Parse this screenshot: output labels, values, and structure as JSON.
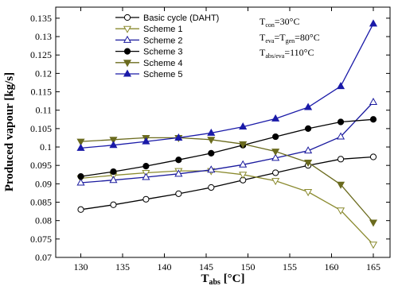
{
  "chart_data": {
    "type": "line",
    "xlabel": "T",
    "xlabel_sub": "abs",
    "xlabel_unit": " [°C]",
    "ylabel": "Produced vapour [kg/s]",
    "xlim": [
      127,
      167
    ],
    "ylim": [
      0.07,
      0.138
    ],
    "xticks": [
      130,
      135,
      140,
      145,
      150,
      155,
      160,
      165
    ],
    "yticks": [
      0.07,
      0.075,
      0.08,
      0.085,
      0.09,
      0.095,
      0.1,
      0.105,
      0.11,
      0.115,
      0.12,
      0.125,
      0.13,
      0.135
    ],
    "ytick_labels": [
      "0.07",
      "0.075",
      "0.08",
      "0.085",
      "0.09",
      "0.095",
      "0.1",
      "0.105",
      "0.11",
      "0.115",
      "0.12",
      "0.125",
      "0.13",
      "0.135"
    ],
    "x": [
      130,
      133.9,
      137.8,
      141.7,
      145.6,
      149.4,
      153.3,
      157.2,
      161.1,
      165
    ],
    "grid": false,
    "legend_position": "top-left",
    "annotations": [
      {
        "main": "T",
        "sub": "con",
        "rest": "=30°C"
      },
      {
        "main": "T",
        "sub": "eva",
        "mid": "=T",
        "sub2": "gen",
        "rest": "=80°C"
      },
      {
        "main": "T",
        "sub": "abs/eva",
        "rest": "=110°C"
      }
    ],
    "series": [
      {
        "name": "Basic cycle (DAHT)",
        "color": "#000000",
        "marker": "circle-open",
        "values": [
          0.083,
          0.0843,
          0.0858,
          0.0873,
          0.089,
          0.091,
          0.093,
          0.095,
          0.0967,
          0.0973
        ]
      },
      {
        "name": "Scheme 1",
        "color": "#8a8a2e",
        "marker": "triangle-down-open",
        "values": [
          0.0915,
          0.0923,
          0.093,
          0.0935,
          0.0935,
          0.0925,
          0.0908,
          0.0878,
          0.0828,
          0.0735
        ]
      },
      {
        "name": "Scheme 2",
        "color": "#1a1a9e",
        "marker": "triangle-up-open",
        "values": [
          0.0903,
          0.091,
          0.0918,
          0.0927,
          0.0938,
          0.0952,
          0.097,
          0.099,
          0.1028,
          0.1122
        ]
      },
      {
        "name": "Scheme 3",
        "color": "#000000",
        "marker": "circle-filled",
        "values": [
          0.092,
          0.0933,
          0.0948,
          0.0965,
          0.0983,
          0.1005,
          0.1028,
          0.105,
          0.1068,
          0.1075
        ]
      },
      {
        "name": "Scheme 4",
        "color": "#6b6b1e",
        "marker": "triangle-down-filled",
        "values": [
          0.1015,
          0.102,
          0.1025,
          0.1025,
          0.102,
          0.1008,
          0.0988,
          0.0958,
          0.0898,
          0.0795
        ]
      },
      {
        "name": "Scheme 5",
        "color": "#1a1aa8",
        "marker": "triangle-up-filled",
        "values": [
          0.0997,
          0.1005,
          0.1015,
          0.1025,
          0.1038,
          0.1055,
          0.1077,
          0.1108,
          0.1165,
          0.1335
        ]
      }
    ]
  }
}
